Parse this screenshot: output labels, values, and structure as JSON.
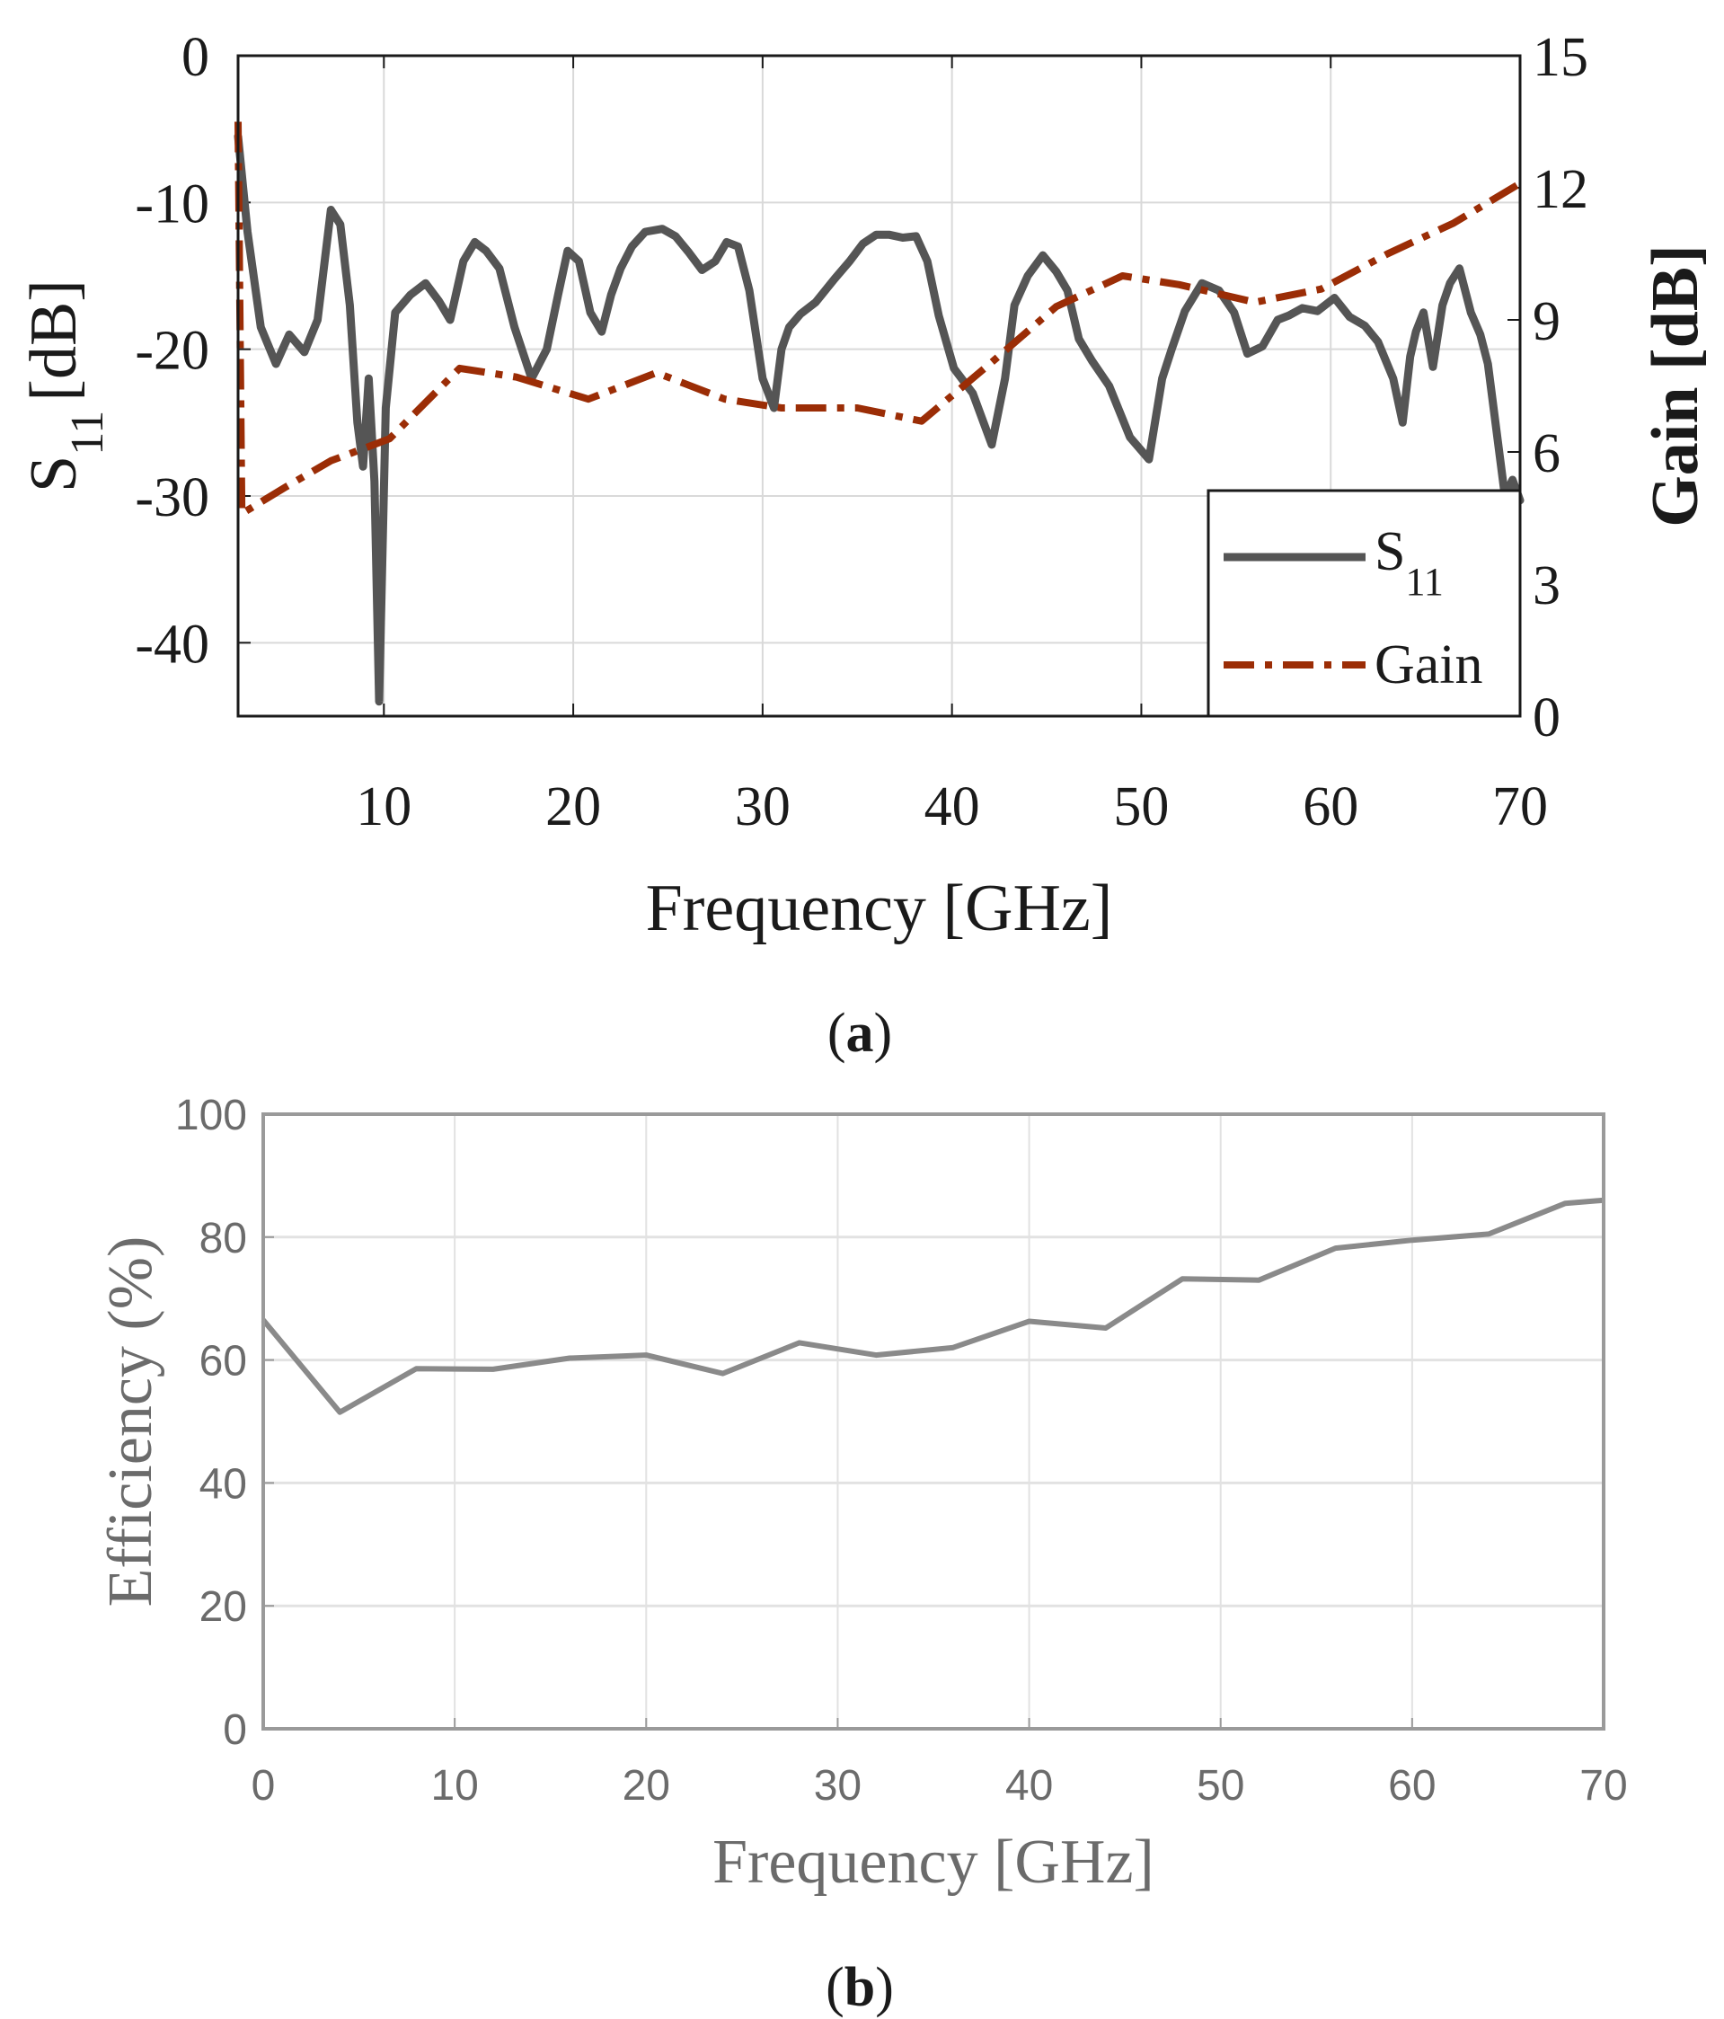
{
  "chart_data": [
    {
      "id": "a",
      "type": "line",
      "caption_letter": "a",
      "caption_open": "(",
      "caption_close": ")",
      "xlabel": "Frequency [GHz]",
      "ylabel_left": {
        "main": "S",
        "sub": "11",
        "unit": "[dB]"
      },
      "ylabel_right": "Gain [dB]",
      "xlim": [
        2.3,
        70
      ],
      "ylim_left": [
        -45,
        0
      ],
      "ylim_right": [
        0,
        15
      ],
      "xticks": [
        "10",
        "20",
        "30",
        "40",
        "50",
        "60",
        "70"
      ],
      "xtick_values": [
        10,
        20,
        30,
        40,
        50,
        60,
        70
      ],
      "yticks_left": [
        "0",
        "-10",
        "-20",
        "-30",
        "-40"
      ],
      "ytick_values_left": [
        0,
        -10,
        -20,
        -30,
        -40
      ],
      "yticks_right": [
        "15",
        "12",
        "9",
        "6",
        "3",
        "0"
      ],
      "ytick_values_right": [
        15,
        12,
        9,
        6,
        3,
        0
      ],
      "grid": true,
      "legend": {
        "position": "bottom-right",
        "entries": [
          {
            "label": "S",
            "sub": "11",
            "series": "S11"
          },
          {
            "label": "Gain",
            "series": "Gain"
          }
        ]
      },
      "colors": {
        "s11": "#555555",
        "gain": "#9b2d06",
        "grid": "#d9d9d9",
        "axis": "#1a1a1a"
      },
      "series": [
        {
          "name": "S11",
          "axis": "left",
          "style": "solid",
          "x": [
            2.3,
            2.8,
            3.5,
            4.3,
            5.0,
            5.8,
            6.5,
            7.2,
            7.7,
            8.2,
            8.6,
            8.9,
            9.2,
            9.5,
            9.75,
            10.1,
            10.6,
            11.4,
            12.2,
            12.9,
            13.5,
            14.2,
            14.8,
            15.4,
            16.1,
            16.9,
            17.8,
            18.6,
            19.2,
            19.7,
            20.3,
            20.9,
            21.5,
            22.0,
            22.5,
            23.1,
            23.8,
            24.7,
            25.4,
            26.1,
            26.8,
            27.5,
            28.1,
            28.7,
            29.3,
            30.0,
            30.6,
            31.0,
            31.4,
            32.0,
            32.8,
            33.8,
            34.6,
            35.3,
            36.0,
            36.7,
            37.4,
            38.1,
            38.7,
            39.3,
            40.1,
            41.1,
            42.1,
            42.8,
            43.3,
            44.0,
            44.8,
            45.5,
            46.1,
            46.7,
            47.4,
            48.3,
            49.4,
            50.4,
            51.1,
            51.6,
            52.3,
            53.2,
            54.1,
            54.9,
            55.6,
            56.4,
            57.2,
            57.8,
            58.5,
            59.3,
            60.2,
            61.0,
            61.8,
            62.5,
            63.3,
            63.8,
            64.2,
            64.5,
            64.9,
            65.4,
            65.9,
            66.3,
            66.8,
            67.4,
            67.9,
            68.3,
            68.8,
            69.2,
            69.6,
            70.0
          ],
          "y": [
            -5.5,
            -12,
            -18.5,
            -21,
            -19,
            -20.2,
            -18,
            -10.5,
            -11.5,
            -17,
            -25,
            -28,
            -22,
            -29,
            -44,
            -24,
            -17.5,
            -16.3,
            -15.5,
            -16.7,
            -18,
            -14,
            -12.7,
            -13.3,
            -14.5,
            -18.5,
            -22,
            -20,
            -16.3,
            -13.3,
            -14,
            -17.5,
            -18.8,
            -16.3,
            -14.5,
            -13,
            -12,
            -11.8,
            -12.3,
            -13.4,
            -14.6,
            -14,
            -12.7,
            -13,
            -16,
            -22,
            -24,
            -20,
            -18.5,
            -17.6,
            -16.8,
            -15.2,
            -14,
            -12.8,
            -12.2,
            -12.2,
            -12.4,
            -12.3,
            -14,
            -17.7,
            -21.3,
            -23,
            -26.5,
            -22,
            -17,
            -15,
            -13.6,
            -14.7,
            -16,
            -19.3,
            -20.8,
            -22.5,
            -26,
            -27.5,
            -22,
            -20,
            -17.4,
            -15.5,
            -16,
            -17.5,
            -20.3,
            -19.8,
            -18,
            -17.7,
            -17.2,
            -17.4,
            -16.5,
            -17.8,
            -18.4,
            -19.5,
            -22,
            -25,
            -20.5,
            -18.8,
            -17.5,
            -21.2,
            -17,
            -15.5,
            -14.5,
            -17.5,
            -19,
            -21,
            -26,
            -30,
            -28.9,
            -30.3
          ]
        },
        {
          "name": "Gain",
          "axis": "right",
          "style": "dashdot",
          "x": [
            2.3,
            2.5,
            4.8,
            7.2,
            10.3,
            14.0,
            17.0,
            20.8,
            24.4,
            28.0,
            31.0,
            35.0,
            38.4,
            42.0,
            45.5,
            49.0,
            52.0,
            56.0,
            59.5,
            63.0,
            66.5,
            70.0
          ],
          "y": [
            13.5,
            4.6,
            5.2,
            5.8,
            6.3,
            7.9,
            7.7,
            7.2,
            7.8,
            7.2,
            7.0,
            7.0,
            6.7,
            8.0,
            9.3,
            10.0,
            9.8,
            9.4,
            9.7,
            10.5,
            11.2,
            12.1
          ]
        }
      ]
    },
    {
      "id": "b",
      "type": "line",
      "caption_letter": "b",
      "caption_open": "(",
      "caption_close": ")",
      "xlabel": "Frequency [GHz]",
      "ylabel": "Efficiency (%)",
      "xlim": [
        0,
        70
      ],
      "ylim": [
        0,
        100
      ],
      "xticks": [
        "0",
        "10",
        "20",
        "30",
        "40",
        "50",
        "60",
        "70"
      ],
      "xtick_values": [
        0,
        10,
        20,
        30,
        40,
        50,
        60,
        70
      ],
      "yticks": [
        "0",
        "20",
        "40",
        "60",
        "80",
        "100"
      ],
      "ytick_values": [
        0,
        20,
        40,
        60,
        80,
        100
      ],
      "grid": true,
      "colors": {
        "line": "#8a8a8a",
        "grid": "#e2e2e2",
        "axis": "#9a9a9a",
        "text": "#6b6b6b"
      },
      "series": [
        {
          "name": "Efficiency",
          "x": [
            0,
            4,
            8,
            12,
            16,
            20,
            24,
            28,
            32,
            36,
            40,
            44,
            48,
            52,
            56,
            60,
            64,
            68,
            70
          ],
          "y": [
            66.5,
            51.5,
            58.6,
            58.5,
            60.3,
            60.8,
            57.8,
            62.8,
            60.8,
            62.0,
            66.3,
            65.2,
            73.2,
            73.0,
            78.2,
            79.5,
            80.5,
            85.5,
            86.0
          ]
        }
      ]
    }
  ]
}
